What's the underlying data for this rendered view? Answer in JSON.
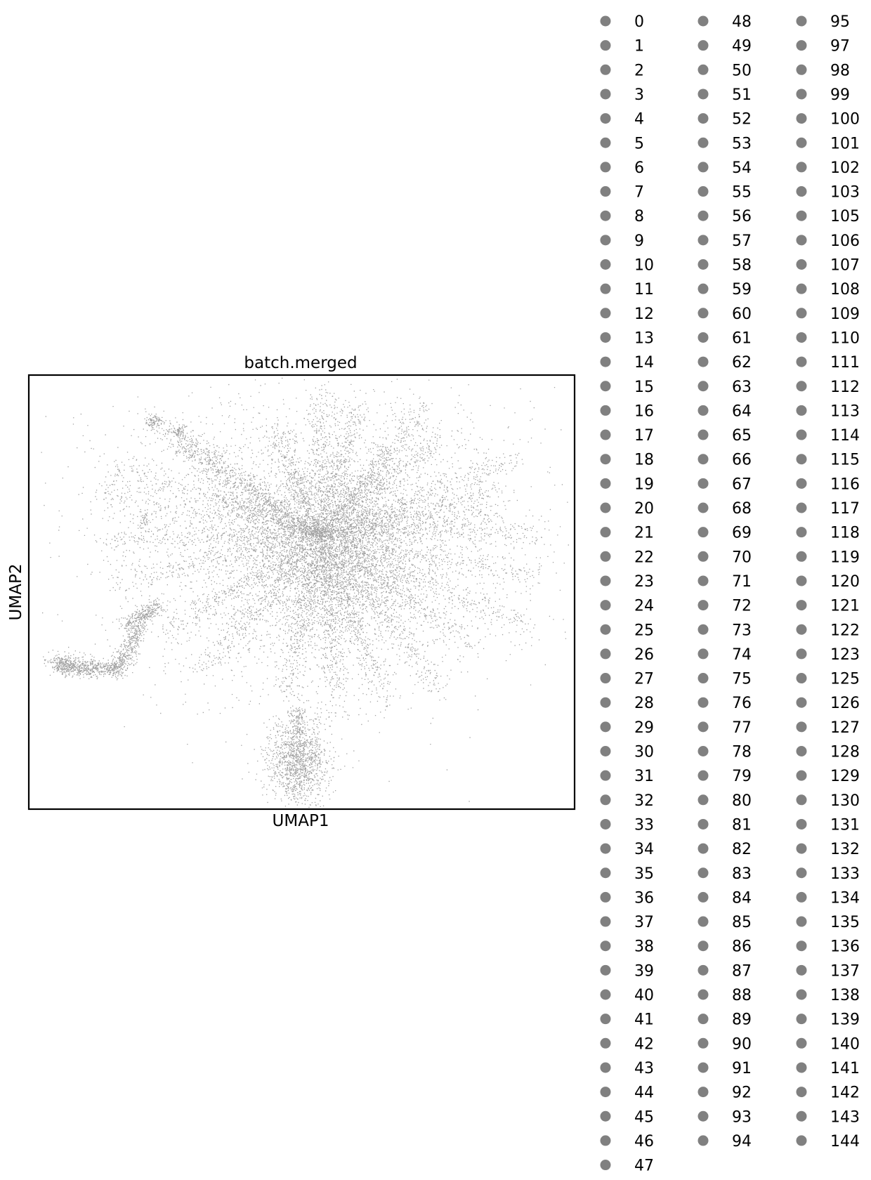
{
  "chart_data": {
    "type": "scatter",
    "title": "batch.merged",
    "xlabel": "UMAP1",
    "ylabel": "UMAP2",
    "xticks": [],
    "yticks": [],
    "grid": false,
    "legend_placement": "right-outside",
    "point_color": "#808080",
    "frame_color": "#000000",
    "series": [
      {
        "name": "UMAP embedding",
        "shape": "starburst cluster with radiating arms, an elongated arm to the lower-left and a separate dense blob below the center"
      }
    ],
    "legend": {
      "columns": [
        [
          "0",
          "1",
          "2",
          "3",
          "4",
          "5",
          "6",
          "7",
          "8",
          "9",
          "10",
          "11",
          "12",
          "13",
          "14",
          "15",
          "16",
          "17",
          "18",
          "19",
          "20",
          "21",
          "22",
          "23",
          "24",
          "25",
          "26",
          "27",
          "28",
          "29",
          "30",
          "31",
          "32",
          "33",
          "34",
          "35",
          "36",
          "37",
          "38",
          "39",
          "40",
          "41",
          "42",
          "43",
          "44",
          "45",
          "46",
          "47"
        ],
        [
          "48",
          "49",
          "50",
          "51",
          "52",
          "53",
          "54",
          "55",
          "56",
          "57",
          "58",
          "59",
          "60",
          "61",
          "62",
          "63",
          "64",
          "65",
          "66",
          "67",
          "68",
          "69",
          "70",
          "71",
          "72",
          "73",
          "74",
          "75",
          "76",
          "77",
          "78",
          "79",
          "80",
          "81",
          "82",
          "83",
          "84",
          "85",
          "86",
          "87",
          "88",
          "89",
          "90",
          "91",
          "92",
          "93",
          "94"
        ],
        [
          "95",
          "97",
          "98",
          "99",
          "100",
          "101",
          "102",
          "103",
          "105",
          "106",
          "107",
          "108",
          "109",
          "110",
          "111",
          "112",
          "113",
          "114",
          "115",
          "116",
          "117",
          "118",
          "119",
          "120",
          "121",
          "122",
          "123",
          "125",
          "126",
          "127",
          "128",
          "129",
          "130",
          "131",
          "132",
          "133",
          "134",
          "135",
          "136",
          "137",
          "138",
          "139",
          "140",
          "141",
          "142",
          "143",
          "144"
        ]
      ],
      "marker_color": "#808080"
    }
  }
}
